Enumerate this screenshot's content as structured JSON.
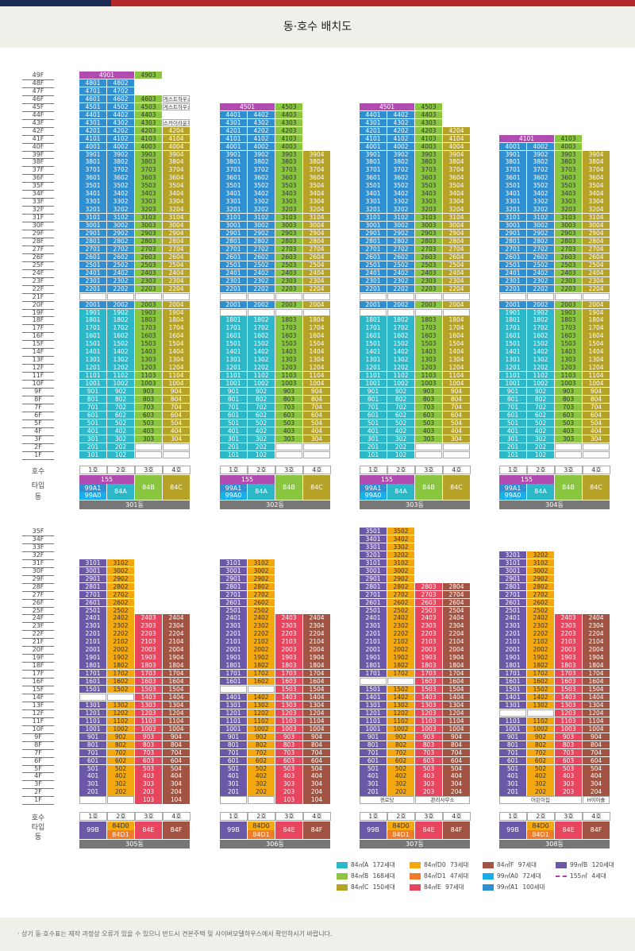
{
  "page_title": "동·호수 배치도",
  "colors": {
    "84A": "#2cb8c8",
    "84B": "#8ac63f",
    "84C": "#b5a226",
    "99A0": "#1aaee8",
    "99A1": "#2f8fd1",
    "155": "#b04bb0",
    "84D0": "#f3a80f",
    "84D1": "#f07b2a",
    "84E": "#e8455f",
    "84F": "#a25341",
    "99B": "#6b59a8"
  },
  "floor_labels_top": [
    "49F",
    "48F",
    "47F",
    "46F",
    "45F",
    "44F",
    "43F",
    "42F",
    "41F",
    "40F",
    "39F",
    "38F",
    "37F",
    "36F",
    "35F",
    "34F",
    "33F",
    "32F",
    "31F",
    "30F",
    "29F",
    "28F",
    "27F",
    "26F",
    "25F",
    "24F",
    "23F",
    "22F",
    "21F",
    "20F",
    "19F",
    "18F",
    "17F",
    "16F",
    "15F",
    "14F",
    "13F",
    "12F",
    "11F",
    "10F",
    "9F",
    "8F",
    "7F",
    "6F",
    "5F",
    "4F",
    "3F",
    "2F",
    "1F"
  ],
  "floor_labels_bottom": [
    "35F",
    "34F",
    "33F",
    "32F",
    "31F",
    "30F",
    "29F",
    "28F",
    "27F",
    "26F",
    "25F",
    "24F",
    "23F",
    "22F",
    "21F",
    "20F",
    "19F",
    "18F",
    "17F",
    "16F",
    "15F",
    "14F",
    "13F",
    "12F",
    "11F",
    "10F",
    "9F",
    "8F",
    "7F",
    "6F",
    "5F",
    "4F",
    "3F",
    "2F",
    "1F"
  ],
  "row_labels": {
    "ho": "호수",
    "type": "타입",
    "dong": "동"
  },
  "ho_labels": [
    "1호",
    "2호",
    "3호",
    "4호"
  ],
  "buildings_top": [
    {
      "dong": "301동",
      "types": [
        "99A1",
        "84A",
        "84B",
        "84C"
      ],
      "type_labels": {
        "155": "155",
        "99A1": "99A1",
        "99A0": "99A0",
        "84A": "84A",
        "84B": "84B",
        "84C": "84C"
      }
    },
    {
      "dong": "302동",
      "types": [
        "99A1",
        "84A",
        "84B",
        "84C"
      ],
      "type_labels": {
        "155": "155",
        "99A1": "99A1",
        "99A0": "99A0",
        "84A": "84A",
        "84B": "84B",
        "84C": "84C"
      }
    },
    {
      "dong": "303동",
      "types": [
        "99A1",
        "84A",
        "84B",
        "84C"
      ],
      "type_labels": {
        "155": "155",
        "99A1": "99A1",
        "99A0": "99A0",
        "84A": "84A",
        "84B": "84B",
        "84C": "84C"
      }
    },
    {
      "dong": "304동",
      "types": [
        "99A1",
        "84A",
        "84B",
        "84C"
      ],
      "type_labels": {
        "155": "155",
        "99A1": "99A1",
        "99A0": "99A0",
        "84A": "84A",
        "84B": "84B",
        "84C": "84C"
      }
    }
  ],
  "buildings_bottom": [
    {
      "dong": "305동",
      "type_labels": {
        "99B": "99B",
        "84D0": "84D0",
        "84D1": "84D1",
        "84E": "84E",
        "84F": "84F"
      }
    },
    {
      "dong": "306동",
      "type_labels": {
        "99B": "99B",
        "84D0": "84D0",
        "84D1": "84D1",
        "84E": "84E",
        "84F": "84F"
      }
    },
    {
      "dong": "307동",
      "type_labels": {
        "99B": "99B",
        "84D0": "84D0",
        "84D1": "84D1",
        "84E": "84E",
        "84F": "84F"
      }
    },
    {
      "dong": "308동",
      "type_labels": {
        "99B": "99B",
        "84D0": "84D0",
        "84D1": "84D1",
        "84E": "84E",
        "84F": "84F"
      }
    }
  ],
  "notes": {
    "guest_house": "게스트하우스",
    "sky_lounge": "스카이라운지",
    "daycare_307a": "경로당",
    "office_307": "관리사무소",
    "daycare_308": "어린이집",
    "lounge_308": "H이이솔"
  },
  "legend": [
    {
      "label": "84㎡A",
      "units": "172세대",
      "color": "#2cb8c8"
    },
    {
      "label": "84㎡B",
      "units": "168세대",
      "color": "#8ac63f"
    },
    {
      "label": "84㎡C",
      "units": "150세대",
      "color": "#b5a226"
    },
    {
      "label": "84㎡D0",
      "units": "73세대",
      "color": "#f3a80f"
    },
    {
      "label": "84㎡D1",
      "units": "47세대",
      "color": "#f07b2a"
    },
    {
      "label": "84㎡E",
      "units": "97세대",
      "color": "#e8455f"
    },
    {
      "label": "84㎡F",
      "units": "97세대",
      "color": "#a25341"
    },
    {
      "label": "99㎡A0",
      "units": "72세대",
      "color": "#1aaee8"
    },
    {
      "label": "99㎡A1",
      "units": "100세대",
      "color": "#2f8fd1"
    },
    {
      "label": "99㎡B",
      "units": "120세대",
      "color": "#6b59a8"
    },
    {
      "label": "155㎡",
      "units": "4세대",
      "color": "dashed"
    }
  ],
  "footer_note": "· 상기 동·호수표는 제작 과정상 오류가 있을 수 있으니 반드시 견본주택 및 사이버모델하우스에서 확인하시기 바랍니다."
}
